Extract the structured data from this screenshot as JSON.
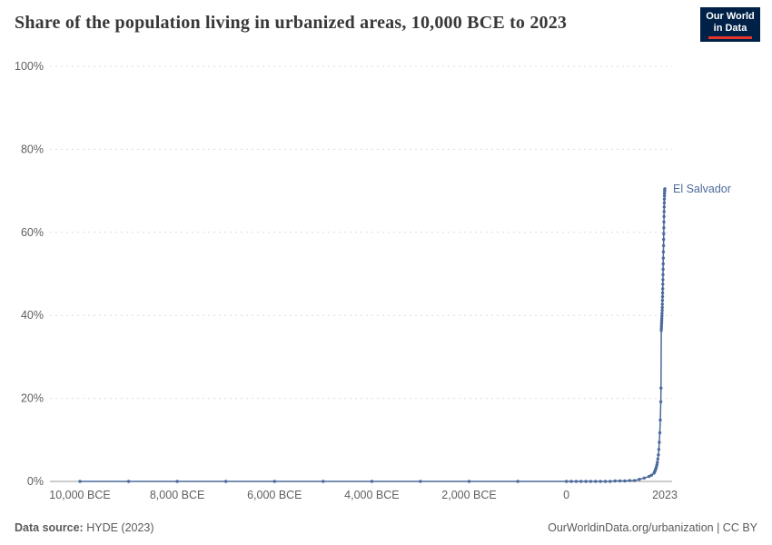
{
  "chart": {
    "title": "Share of the population living in urbanized areas, 10,000 BCE to 2023"
  },
  "logo": {
    "line1": "Our World",
    "line2": "in Data"
  },
  "footer": {
    "source_label": "Data source:",
    "source_value": " HYDE (2023)",
    "credit": "OurWorldinData.org/urbanization | CC BY"
  },
  "colors": {
    "series": "#4c6a9c",
    "grid": "#dcdcdc",
    "axis": "#9a9a9a",
    "tick_text": "#5f5f5f",
    "title_text": "#383838",
    "logo_bg": "#002147",
    "logo_red": "#e5352b"
  },
  "chart_data": {
    "type": "line",
    "title": "Share of the population living in urbanized areas, 10,000 BCE to 2023",
    "xlabel": "",
    "ylabel": "",
    "x_domain": [
      -10000,
      2023
    ],
    "y_domain": [
      0,
      100
    ],
    "grid": "dashed-horizontal",
    "legend_position": "end-of-line-label",
    "x_ticks": [
      {
        "v": -10000,
        "label": "10,000 BCE"
      },
      {
        "v": -8000,
        "label": "8,000 BCE"
      },
      {
        "v": -6000,
        "label": "6,000 BCE"
      },
      {
        "v": -4000,
        "label": "4,000 BCE"
      },
      {
        "v": -2000,
        "label": "2,000 BCE"
      },
      {
        "v": 0,
        "label": "0"
      },
      {
        "v": 2023,
        "label": "2023"
      }
    ],
    "y_ticks": [
      {
        "v": 0,
        "label": "0%"
      },
      {
        "v": 20,
        "label": "20%"
      },
      {
        "v": 40,
        "label": "40%"
      },
      {
        "v": 60,
        "label": "60%"
      },
      {
        "v": 80,
        "label": "80%"
      },
      {
        "v": 100,
        "label": "100%"
      }
    ],
    "series": [
      {
        "name": "El Salvador",
        "color": "#4c6a9c",
        "points": [
          [
            -10000,
            0
          ],
          [
            -9000,
            0
          ],
          [
            -8000,
            0
          ],
          [
            -7000,
            0
          ],
          [
            -6000,
            0
          ],
          [
            -5000,
            0
          ],
          [
            -4000,
            0
          ],
          [
            -3000,
            0
          ],
          [
            -2000,
            0
          ],
          [
            -1000,
            0
          ],
          [
            0,
            0
          ],
          [
            100,
            0
          ],
          [
            200,
            0
          ],
          [
            300,
            0
          ],
          [
            400,
            0
          ],
          [
            500,
            0
          ],
          [
            600,
            0
          ],
          [
            700,
            0
          ],
          [
            800,
            0
          ],
          [
            900,
            0
          ],
          [
            1000,
            0.1
          ],
          [
            1100,
            0.1
          ],
          [
            1200,
            0.1
          ],
          [
            1300,
            0.2
          ],
          [
            1400,
            0.2
          ],
          [
            1500,
            0.5
          ],
          [
            1600,
            0.8
          ],
          [
            1700,
            1.2
          ],
          [
            1750,
            1.5
          ],
          [
            1800,
            2
          ],
          [
            1810,
            2.2
          ],
          [
            1820,
            2.5
          ],
          [
            1830,
            2.8
          ],
          [
            1840,
            3.1
          ],
          [
            1850,
            3.5
          ],
          [
            1860,
            4
          ],
          [
            1870,
            4.6
          ],
          [
            1880,
            5.4
          ],
          [
            1890,
            6.4
          ],
          [
            1900,
            7.7
          ],
          [
            1910,
            9.4
          ],
          [
            1920,
            11.7
          ],
          [
            1930,
            14.8
          ],
          [
            1940,
            19.2
          ],
          [
            1945,
            22.5
          ],
          [
            1950,
            36.4
          ],
          [
            1952,
            36.9
          ],
          [
            1954,
            37.4
          ],
          [
            1956,
            37.9
          ],
          [
            1958,
            38.3
          ],
          [
            1960,
            38.8
          ],
          [
            1962,
            39.3
          ],
          [
            1964,
            39.9
          ],
          [
            1966,
            40.5
          ],
          [
            1968,
            41.2
          ],
          [
            1970,
            41.9
          ],
          [
            1972,
            42.7
          ],
          [
            1974,
            43.6
          ],
          [
            1976,
            44.5
          ],
          [
            1978,
            45.4
          ],
          [
            1980,
            46.4
          ],
          [
            1982,
            47.5
          ],
          [
            1984,
            48.6
          ],
          [
            1986,
            49.8
          ],
          [
            1988,
            51.1
          ],
          [
            1990,
            52.4
          ],
          [
            1992,
            53.8
          ],
          [
            1994,
            55.3
          ],
          [
            1996,
            56.8
          ],
          [
            1998,
            58.3
          ],
          [
            2000,
            59.7
          ],
          [
            2002,
            61.1
          ],
          [
            2004,
            62.5
          ],
          [
            2006,
            63.8
          ],
          [
            2008,
            65.0
          ],
          [
            2010,
            66.1
          ],
          [
            2012,
            67.1
          ],
          [
            2014,
            68.0
          ],
          [
            2016,
            68.8
          ],
          [
            2018,
            69.4
          ],
          [
            2020,
            69.9
          ],
          [
            2022,
            70.3
          ],
          [
            2023,
            70.5
          ]
        ]
      }
    ]
  }
}
